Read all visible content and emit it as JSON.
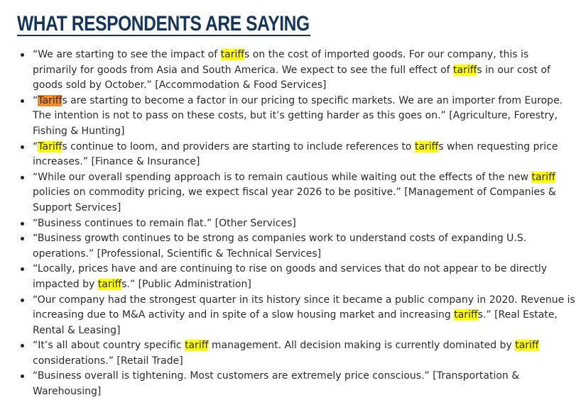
{
  "title": "WHAT RESPONDENTS ARE SAYING",
  "highlight_colors": {
    "match": "#ffff00",
    "current_match": "#f28c28"
  },
  "quotes": [
    {
      "segments": [
        {
          "text": "“We are starting to see the impact of "
        },
        {
          "text": "tariff",
          "hl": "match"
        },
        {
          "text": "s on the cost of imported goods. For our company, this is primarily for goods from Asia and South America. We expect to see the full effect of "
        },
        {
          "text": "tariff",
          "hl": "match"
        },
        {
          "text": "s in our cost of goods sold by October.” [Accommodation & Food Services]"
        }
      ]
    },
    {
      "segments": [
        {
          "text": "“"
        },
        {
          "text": "Tariff",
          "hl": "current"
        },
        {
          "text": "s are starting to become a factor in our pricing to specific markets. We are an importer from Europe. The intention is not to pass on these costs, but it’s getting harder as this goes on.” [Agriculture, Forestry, Fishing & Hunting]"
        }
      ]
    },
    {
      "segments": [
        {
          "text": "“"
        },
        {
          "text": "Tariff",
          "hl": "match"
        },
        {
          "text": "s continue to loom, and providers are starting to include references to "
        },
        {
          "text": "tariff",
          "hl": "match"
        },
        {
          "text": "s when requesting price increases.” [Finance & Insurance]"
        }
      ]
    },
    {
      "segments": [
        {
          "text": "“While our overall spending approach is to remain cautious while waiting out the effects of the new "
        },
        {
          "text": "tariff",
          "hl": "match"
        },
        {
          "text": " policies on commodity pricing, we expect fiscal year 2026 to be positive.” [Management of Companies & Support Services]"
        }
      ]
    },
    {
      "segments": [
        {
          "text": "“Business continues to remain flat.” [Other Services]"
        }
      ]
    },
    {
      "segments": [
        {
          "text": "“Business growth continues to be strong as companies work to understand costs of expanding U.S. operations.” [Professional, Scientific & Technical Services]"
        }
      ]
    },
    {
      "segments": [
        {
          "text": "“Locally, prices have and are continuing to rise on goods and services that do not appear to be directly impacted by "
        },
        {
          "text": "tariff",
          "hl": "match"
        },
        {
          "text": "s.” [Public Administration]"
        }
      ]
    },
    {
      "segments": [
        {
          "text": "“Our company had the strongest quarter in its history since it became a public company in 2020. Revenue is increasing due to M&A activity and in spite of a slow housing market and increasing "
        },
        {
          "text": "tariff",
          "hl": "match"
        },
        {
          "text": "s.” [Real Estate, Rental & Leasing]"
        }
      ]
    },
    {
      "segments": [
        {
          "text": "“It’s all about country specific "
        },
        {
          "text": "tariff",
          "hl": "match"
        },
        {
          "text": " management. All decision making is currently dominated by "
        },
        {
          "text": "tariff",
          "hl": "match"
        },
        {
          "text": " considerations.” [Retail Trade]"
        }
      ]
    },
    {
      "segments": [
        {
          "text": "“Business overall is tightening. Most customers are extremely price conscious.” [Transportation & Warehousing]"
        }
      ]
    }
  ]
}
